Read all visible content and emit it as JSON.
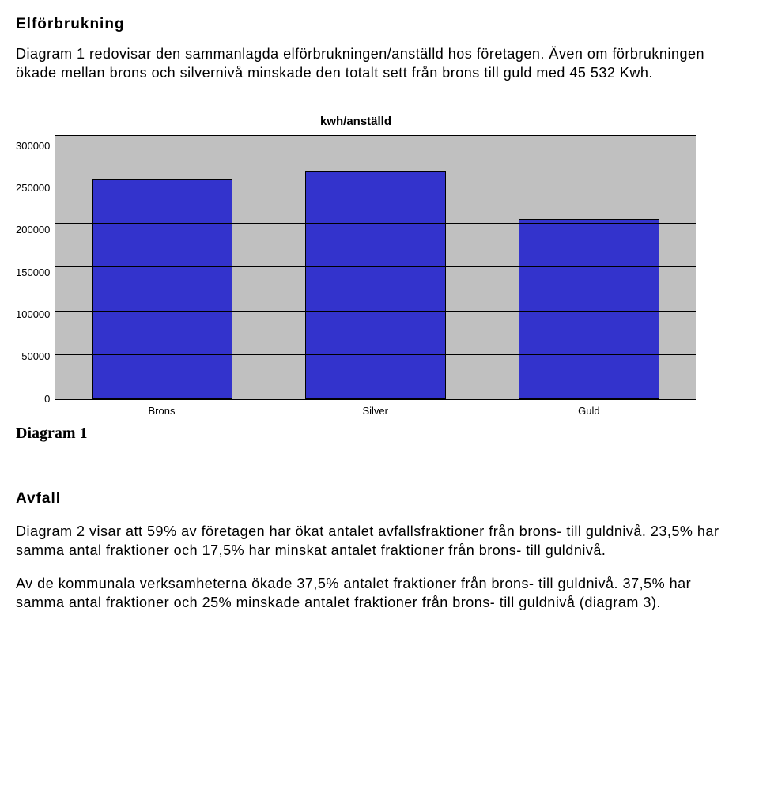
{
  "section1": {
    "title": "Elförbrukning",
    "paragraph": "Diagram 1 redovisar den sammanlagda elförbrukningen/anställd hos företagen. Även om förbrukningen ökade mellan brons och silvernivå minskade den totalt sett från brons till guld med 45 532 Kwh."
  },
  "chart": {
    "type": "bar",
    "title": "kwh/anställd",
    "categories": [
      "Brons",
      "Silver",
      "Guld"
    ],
    "values": [
      250000,
      260000,
      205000
    ],
    "ylim": [
      0,
      300000
    ],
    "ytick_step": 50000,
    "yticks": [
      "300000",
      "250000",
      "200000",
      "150000",
      "100000",
      "50000",
      "0"
    ],
    "bar_color": "#3333cc",
    "bar_border": "#000000",
    "background_color": "#c0c0c0",
    "grid_color": "#000000",
    "title_fontsize": 15,
    "tick_fontsize": 13,
    "bar_width_pct": 22
  },
  "diagram_label": "Diagram 1",
  "section2": {
    "title": "Avfall",
    "p1": "Diagram 2 visar att 59% av företagen har ökat antalet avfallsfraktioner från brons- till guldnivå. 23,5% har samma antal fraktioner och 17,5% har minskat antalet fraktioner från brons- till guldnivå.",
    "p2": "Av de kommunala verksamheterna ökade 37,5% antalet fraktioner från brons- till guldnivå. 37,5% har samma antal fraktioner och 25% minskade antalet fraktioner från brons- till guldnivå (diagram 3)."
  }
}
